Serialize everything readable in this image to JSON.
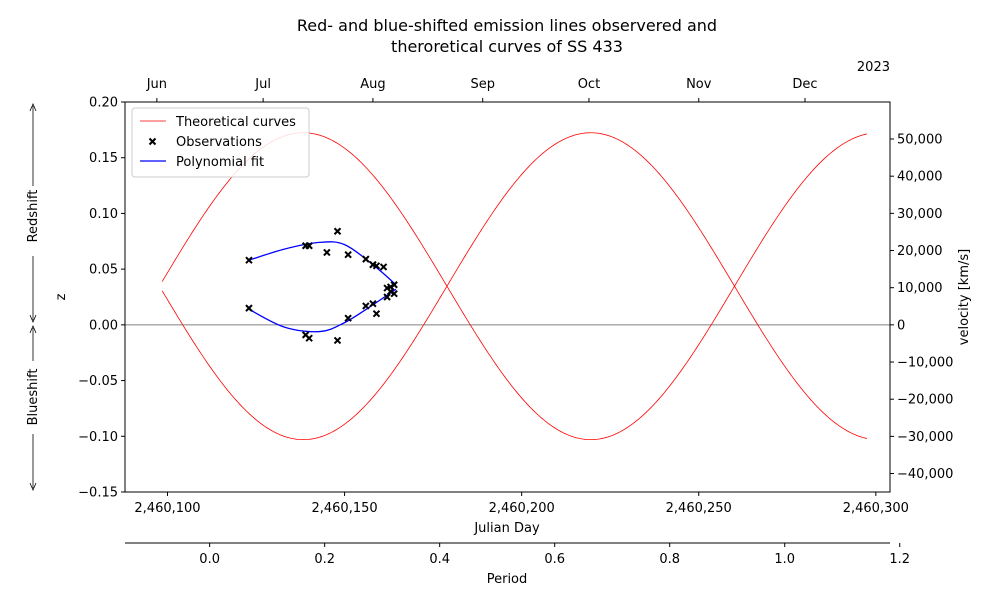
{
  "chart_data": {
    "type": "scatter",
    "title_line1": "Red- and blue-shifted emission lines observered and",
    "title_line2": "theroretical curves of SS 433",
    "xlabel": "Julian Day",
    "ylabel": "z",
    "y2label": "velocity [km/s]",
    "x3label": "Period",
    "top_year": "2023",
    "redshift_label": "Redshift",
    "blueshift_label": "Blueshift",
    "xlim": [
      2460088,
      2460304
    ],
    "ylim": [
      -0.15,
      0.2
    ],
    "grid": false,
    "legend_position": "top-left",
    "colors": {
      "theory": "#ff0000",
      "observations": "#000000",
      "fit": "#0000ff",
      "zero_line": "#808080"
    },
    "x_ticks": [
      "2,460,100",
      "2,460,150",
      "2,460,200",
      "2,460,250",
      "2,460,300"
    ],
    "x_tick_values": [
      2460100,
      2460150,
      2460200,
      2460250,
      2460300
    ],
    "y_ticks": [
      "−0.15",
      "−0.10",
      "−0.05",
      "0.00",
      "0.05",
      "0.10",
      "0.15",
      "0.20"
    ],
    "y_tick_values": [
      -0.15,
      -0.1,
      -0.05,
      0.0,
      0.05,
      0.1,
      0.15,
      0.2
    ],
    "y2_ticks": [
      "−40,000",
      "−30,000",
      "−20,000",
      "−10,000",
      "0",
      "10,000",
      "20,000",
      "30,000",
      "40,000",
      "50,000"
    ],
    "y2_tick_values": [
      -40000,
      -30000,
      -20000,
      -10000,
      0,
      10000,
      20000,
      30000,
      40000,
      50000
    ],
    "month_ticks": [
      "Jun",
      "Jul",
      "Aug",
      "Sep",
      "Oct",
      "Nov",
      "Dec"
    ],
    "month_tick_values": [
      2460097,
      2460127,
      2460158,
      2460189,
      2460219,
      2460250,
      2460280
    ],
    "period_ticks": [
      "0.0",
      "0.2",
      "0.4",
      "0.6",
      "0.8",
      "1.0",
      "1.2"
    ],
    "period_tick_values": [
      0.0,
      0.2,
      0.4,
      0.6,
      0.8,
      1.0,
      1.2
    ],
    "period_zero_jd": 2460111.9,
    "period_length_days": 162.375,
    "legend": [
      "Theoretical curves",
      "Observations",
      "Polynomial fit"
    ],
    "theory_range": [
      2460098.5,
      2460297.5
    ],
    "theory_red": {
      "mean": 0.0347,
      "amp": 0.1377,
      "peak_jd": 2460219.5
    },
    "theory_blue": {
      "mean": 0.0347,
      "amp": -0.1377,
      "peak_jd": 2460219.5
    },
    "fit_upper_x": [
      2460123,
      2460133,
      2460143,
      2460150,
      2460158,
      2460164.5
    ],
    "fit_upper_y": [
      0.058,
      0.068,
      0.074,
      0.072,
      0.054,
      0.036
    ],
    "fit_lower_x": [
      2460123,
      2460133,
      2460143,
      2460150,
      2460158,
      2460164.5
    ],
    "fit_lower_y": [
      0.014,
      -0.002,
      -0.006,
      0.002,
      0.018,
      0.032
    ],
    "observations": {
      "x": [
        2460123,
        2460123,
        2460139,
        2460140,
        2460139,
        2460140,
        2460145,
        2460148,
        2460151,
        2460151,
        2460148,
        2460156,
        2460156,
        2460158,
        2460158,
        2460159,
        2460161,
        2460162,
        2460162,
        2460163,
        2460164,
        2460163,
        2460164,
        2460158,
        2460159
      ],
      "y": [
        0.058,
        0.015,
        0.071,
        0.071,
        -0.009,
        -0.012,
        0.065,
        0.084,
        0.063,
        0.006,
        -0.014,
        0.059,
        0.017,
        0.054,
        0.019,
        0.053,
        0.052,
        0.033,
        0.025,
        0.034,
        0.036,
        0.03,
        0.028,
        0.054,
        0.01
      ]
    }
  }
}
